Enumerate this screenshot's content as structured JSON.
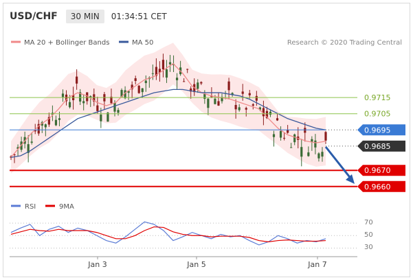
{
  "header": {
    "symbol": "USD/CHF",
    "timeframe": "30 MIN",
    "time": "01:34:51 CET"
  },
  "legend": {
    "items": [
      "MA 20 + Bollinger Bands",
      "MA 50"
    ],
    "credit": "Research © 2020 Trading Central"
  },
  "colors": {
    "ma20": "#f08a8a",
    "ma50": "#3a5a9c",
    "band": "#fde3e3",
    "bull": "#3a6b35",
    "bear": "#8b1d1d",
    "support": "#e00000",
    "pivot": "#3a7bd5",
    "resist": "#8bc34a",
    "arrow": "#2a5caa"
  },
  "levels": [
    {
      "label": "0.9715",
      "value": 0.9715,
      "kind": "resistance"
    },
    {
      "label": "0.9705",
      "value": 0.9705,
      "kind": "resistance"
    },
    {
      "label": "0.9695",
      "value": 0.9695,
      "kind": "pivot"
    },
    {
      "label": "0.9685",
      "value": 0.9685,
      "kind": "last"
    },
    {
      "label": "0.9670",
      "value": 0.967,
      "kind": "support"
    },
    {
      "label": "0.9660",
      "value": 0.966,
      "kind": "support"
    }
  ],
  "rsi_legend": {
    "items": [
      "RSI",
      "9MA"
    ]
  },
  "rsi_ticks": [
    "70",
    "50",
    "30"
  ],
  "x_ticks": [
    "Jan 3",
    "Jan 5",
    "Jan 7"
  ],
  "chart_data": {
    "type": "line",
    "title": "USD/CHF",
    "ylim": [
      0.9655,
      0.9775
    ],
    "series": [
      {
        "name": "MA 20 + Bollinger Bands",
        "values": [
          0.9678,
          0.9685,
          0.9692,
          0.9698,
          0.9702,
          0.9708,
          0.9715,
          0.9718,
          0.9716,
          0.9712,
          0.971,
          0.9712,
          0.9718,
          0.9722,
          0.9726,
          0.9728,
          0.9732,
          0.9736,
          0.973,
          0.9722,
          0.9718,
          0.9716,
          0.9715,
          0.9714,
          0.9712,
          0.971,
          0.9708,
          0.9702,
          0.9696,
          0.9692,
          0.969,
          0.9688,
          0.9687,
          0.9688
        ]
      },
      {
        "name": "MA 50",
        "values": [
          0.9678,
          0.9679,
          0.9682,
          0.9686,
          0.969,
          0.9694,
          0.9698,
          0.9702,
          0.9704,
          0.9706,
          0.9708,
          0.971,
          0.9712,
          0.9714,
          0.9716,
          0.9718,
          0.9719,
          0.972,
          0.972,
          0.9719,
          0.9718,
          0.9718,
          0.9718,
          0.9717,
          0.9716,
          0.9714,
          0.9711,
          0.9708,
          0.9705,
          0.9702,
          0.97,
          0.9698,
          0.9696,
          0.9695
        ]
      }
    ],
    "rsi": {
      "ticks": [
        70,
        50,
        30
      ],
      "rsi": [
        55,
        62,
        68,
        50,
        60,
        65,
        55,
        62,
        58,
        50,
        42,
        38,
        48,
        60,
        72,
        68,
        58,
        42,
        48,
        55,
        50,
        45,
        52,
        48,
        50,
        42,
        35,
        40,
        50,
        45,
        38,
        42,
        40,
        45
      ],
      "ma9": [
        52,
        56,
        60,
        58,
        57,
        60,
        58,
        58,
        58,
        55,
        50,
        45,
        45,
        50,
        58,
        64,
        63,
        56,
        52,
        50,
        50,
        48,
        49,
        49,
        49,
        47,
        42,
        40,
        42,
        43,
        42,
        41,
        41,
        42
      ]
    }
  }
}
